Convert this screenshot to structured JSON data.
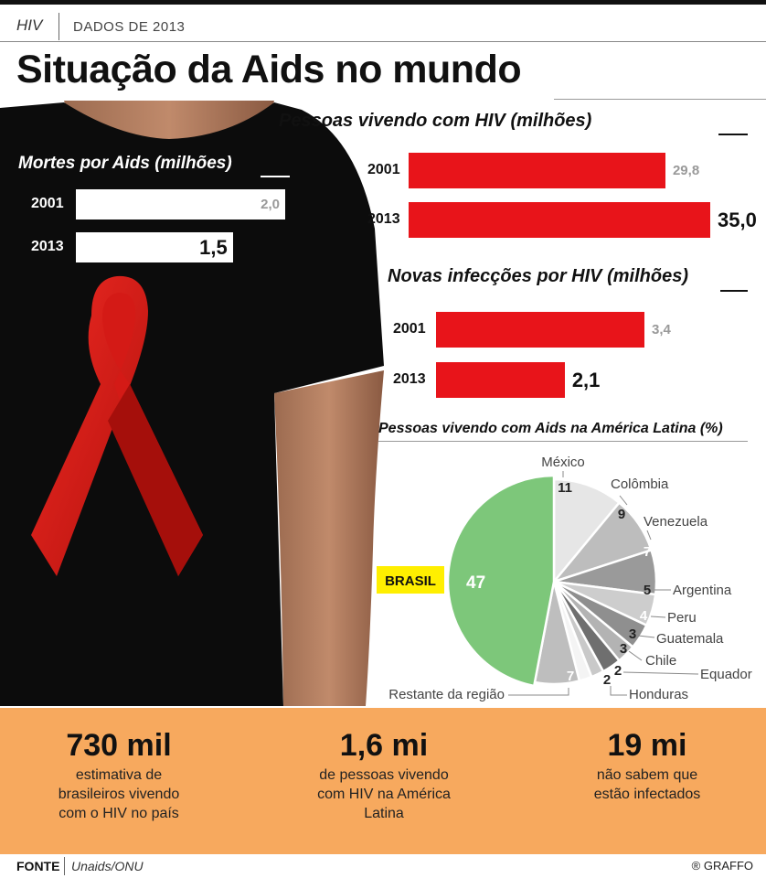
{
  "header": {
    "tag": "HIV",
    "date": "DADOS DE 2013",
    "title": "Situação da Aids no mundo"
  },
  "colors": {
    "bar_red": "#e8141a",
    "bar_white": "#ffffff",
    "pie_brasil": "#7dc77a",
    "highlight_yellow": "#ffef00",
    "orange": "#f7a95e"
  },
  "chart_data": [
    {
      "type": "bar",
      "title": "Mortes por Aids (milhões)",
      "categories": [
        "2001",
        "2013"
      ],
      "values": [
        2.0,
        1.5
      ],
      "value_labels": [
        "2,0",
        "1,5"
      ]
    },
    {
      "type": "bar",
      "title": "Pessoas vivendo com HIV (milhões)",
      "categories": [
        "2001",
        "2013"
      ],
      "values": [
        29.8,
        35.0
      ],
      "value_labels": [
        "29,8",
        "35,0"
      ]
    },
    {
      "type": "bar",
      "title": "Novas infecções por HIV (milhões)",
      "categories": [
        "2001",
        "2013"
      ],
      "values": [
        3.4,
        2.1
      ],
      "value_labels": [
        "3,4",
        "2,1"
      ]
    },
    {
      "type": "pie",
      "title": "Pessoas vivendo com Aids na América Latina (%)",
      "slices": [
        {
          "name": "BRASIL",
          "value": 47,
          "color": "#7dc77a"
        },
        {
          "name": "México",
          "value": 11,
          "color": "#e6e6e6"
        },
        {
          "name": "Colômbia",
          "value": 9,
          "color": "#bdbdbd"
        },
        {
          "name": "Venezuela",
          "value": 7,
          "color": "#9a9a9a"
        },
        {
          "name": "Argentina",
          "value": 5,
          "color": "#cdcdcd"
        },
        {
          "name": "Peru",
          "value": 4,
          "color": "#8f8f8f"
        },
        {
          "name": "Guatemala",
          "value": 3,
          "color": "#b3b3b3"
        },
        {
          "name": "Chile",
          "value": 3,
          "color": "#6f6f6f"
        },
        {
          "name": "Equador",
          "value": 2,
          "color": "#c9c9c9"
        },
        {
          "name": "Honduras",
          "value": 2,
          "color": "#f4f4f4"
        },
        {
          "name": "Restante da região",
          "value": 7,
          "color": "#bebebe"
        }
      ]
    }
  ],
  "stats": [
    {
      "big": "730 mil",
      "text": [
        "estimativa de",
        "brasileiros vivendo",
        "com o HIV no país"
      ]
    },
    {
      "big": "1,6 mi",
      "text": [
        "de pessoas vivendo",
        "com HIV na América",
        "Latina"
      ]
    },
    {
      "big": "19 mi",
      "text": [
        "não sabem que",
        "estão infectados"
      ]
    }
  ],
  "footer": {
    "fonte_label": "FONTE",
    "fonte_source": "Unaids/ONU",
    "credit": "® GRAFFO"
  }
}
